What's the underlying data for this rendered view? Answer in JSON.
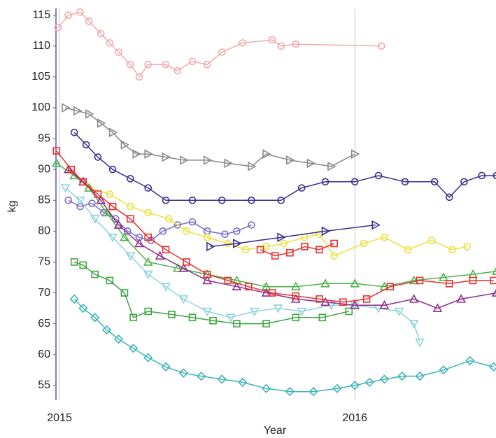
{
  "chart_data": {
    "type": "line",
    "x_label": "Year",
    "y_label": "kg",
    "xlim": [
      2014.988,
      2016.478
    ],
    "xticks": [
      2015,
      2016
    ],
    "ylim": [
      52.6,
      116.1
    ],
    "yticks": [
      55,
      60,
      65,
      70,
      75,
      80,
      85,
      90,
      95,
      100,
      105,
      110,
      115
    ],
    "x_grid": true,
    "series": [
      {
        "color": "#f2a9ad",
        "marker": "circle",
        "x": [
          2014.995,
          2015.03,
          2015.07,
          2015.1,
          2015.14,
          2015.17,
          2015.2,
          2015.24,
          2015.27,
          2015.3,
          2015.36,
          2015.4,
          2015.45,
          2015.5,
          2015.55,
          2015.62,
          2015.72,
          2015.75,
          2015.8,
          2016.09
        ],
        "values": [
          113,
          115,
          115.5,
          114,
          112,
          110.5,
          109,
          107,
          105,
          107,
          107,
          106,
          107.5,
          107,
          109,
          110.5,
          111,
          110,
          110.3,
          110
        ]
      },
      {
        "color": "#8a8a8a",
        "marker": "triangle-right",
        "x": [
          2015.02,
          2015.06,
          2015.1,
          2015.14,
          2015.18,
          2015.22,
          2015.26,
          2015.3,
          2015.36,
          2015.42,
          2015.5,
          2015.57,
          2015.65,
          2015.7,
          2015.78,
          2015.85,
          2015.92,
          2016.0
        ],
        "values": [
          100,
          99.5,
          99,
          97.5,
          96,
          94,
          92.5,
          92.5,
          92,
          91.5,
          91.5,
          91,
          90.5,
          92.5,
          91.5,
          91,
          90.5,
          92.5
        ]
      },
      {
        "color": "#3b2e8f",
        "marker": "circle",
        "x": [
          2015.05,
          2015.09,
          2015.13,
          2015.18,
          2015.24,
          2015.3,
          2015.36,
          2015.45,
          2015.55,
          2015.65,
          2015.75,
          2015.82,
          2015.9,
          2016.0,
          2016.08,
          2016.17,
          2016.27,
          2016.32,
          2016.37,
          2016.43,
          2016.48
        ],
        "values": [
          96,
          94,
          92,
          90,
          88.5,
          87,
          85,
          85,
          85,
          85,
          85,
          87,
          88,
          88,
          89,
          88,
          88,
          85.5,
          88,
          89,
          89
        ]
      },
      {
        "color": "#7b6cc9",
        "marker": "circle",
        "x": [
          2015.03,
          2015.07,
          2015.11,
          2015.15,
          2015.19,
          2015.23,
          2015.27,
          2015.31,
          2015.35,
          2015.4,
          2015.45,
          2015.5,
          2015.56,
          2015.6,
          2015.65
        ],
        "values": [
          85,
          84,
          84.5,
          83,
          82,
          80,
          79,
          78.5,
          80,
          81,
          81.5,
          80,
          79.5,
          80,
          81
        ]
      },
      {
        "color": "#e9e13c",
        "marker": "circle",
        "x": [
          2015.1,
          2015.17,
          2015.24,
          2015.3,
          2015.37,
          2015.43,
          2015.5,
          2015.57,
          2015.63,
          2015.7,
          2015.76,
          2015.83,
          2015.88,
          2015.93,
          2016.03,
          2016.1,
          2016.18,
          2016.26,
          2016.33,
          2016.38
        ],
        "values": [
          87,
          86,
          84,
          83,
          82,
          80,
          79,
          78,
          77,
          77.5,
          78,
          79,
          79.5,
          76,
          78,
          79,
          77,
          78.5,
          77,
          77.5
        ]
      },
      {
        "color": "#4db34a",
        "marker": "triangle-up",
        "x": [
          2014.99,
          2015.05,
          2015.1,
          2015.16,
          2015.22,
          2015.3,
          2015.4,
          2015.5,
          2015.6,
          2015.7,
          2015.8,
          2015.9,
          2016.0,
          2016.1,
          2016.2,
          2016.3,
          2016.4,
          2016.48
        ],
        "values": [
          91,
          89,
          87,
          83,
          79,
          75,
          74,
          73,
          72,
          71,
          71,
          71.5,
          71.5,
          71,
          72,
          72.5,
          73,
          73.5
        ]
      },
      {
        "color": "#3fa540",
        "marker": "square",
        "x": [
          2015.05,
          2015.08,
          2015.12,
          2015.17,
          2015.22,
          2015.25,
          2015.3,
          2015.38,
          2015.45,
          2015.52,
          2015.6,
          2015.7,
          2015.8,
          2015.89,
          2015.98
        ],
        "values": [
          75,
          74.5,
          73,
          72,
          70,
          66,
          67,
          66.5,
          66,
          65.5,
          65,
          65,
          66,
          66,
          67
        ]
      },
      {
        "color": "#8fd3dc",
        "marker": "triangle-down",
        "x": [
          2015.02,
          2015.07,
          2015.12,
          2015.18,
          2015.24,
          2015.3,
          2015.36,
          2015.42,
          2015.5,
          2015.58,
          2015.66,
          2015.74,
          2015.82,
          2015.92,
          2016.0,
          2016.08,
          2016.15,
          2016.2,
          2016.22
        ],
        "values": [
          87,
          85,
          82,
          79,
          76,
          73,
          71,
          69,
          67,
          66,
          67,
          67.5,
          67,
          68,
          68,
          67.5,
          67,
          65,
          62
        ]
      },
      {
        "color": "#8e2c8c",
        "marker": "triangle-up",
        "x": [
          2015.03,
          2015.08,
          2015.14,
          2015.2,
          2015.27,
          2015.34,
          2015.42,
          2015.5,
          2015.6,
          2015.7,
          2015.8,
          2015.9,
          2016.0,
          2016.1,
          2016.2,
          2016.28,
          2016.36,
          2016.48
        ],
        "values": [
          90,
          88,
          85,
          81,
          78,
          76,
          74,
          72,
          71,
          70,
          69,
          68.5,
          68,
          68,
          69,
          67.5,
          69,
          70
        ]
      },
      {
        "color": "#e8302e",
        "marker": "square",
        "x": [
          2014.99,
          2015.04,
          2015.08,
          2015.13,
          2015.18,
          2015.24,
          2015.3,
          2015.36,
          2015.43,
          2015.5,
          2015.57,
          2015.64,
          2015.72,
          2015.8,
          2015.88,
          2015.96,
          2016.04,
          2016.12,
          2016.22,
          2016.32,
          2016.4,
          2016.47
        ],
        "values": [
          93,
          90,
          88,
          86,
          84,
          82,
          79,
          77,
          75,
          73,
          72,
          71,
          70,
          69.5,
          69,
          68.5,
          69,
          71,
          72,
          71.5,
          72,
          72
        ]
      },
      {
        "color": "#e8302e",
        "marker": "square",
        "x": [
          2015.68,
          2015.73,
          2015.78,
          2015.83,
          2015.88,
          2015.93
        ],
        "values": [
          77,
          76,
          76.5,
          77.5,
          77,
          78
        ]
      },
      {
        "color": "#3b2e8f",
        "marker": "triangle-right",
        "x": [
          2015.51,
          2015.6,
          2015.75,
          2015.9,
          2016.07
        ],
        "values": [
          77.5,
          78,
          79,
          80,
          81
        ]
      },
      {
        "color": "#3cb4b8",
        "marker": "diamond",
        "x": [
          2015.05,
          2015.08,
          2015.12,
          2015.16,
          2015.2,
          2015.25,
          2015.3,
          2015.36,
          2015.42,
          2015.48,
          2015.55,
          2015.62,
          2015.7,
          2015.78,
          2015.86,
          2015.94,
          2016.0,
          2016.05,
          2016.1,
          2016.16,
          2016.22,
          2016.3,
          2016.39,
          2016.47
        ],
        "values": [
          69,
          67.5,
          66,
          64,
          62.5,
          61,
          59.5,
          58,
          57,
          56.5,
          56,
          55.5,
          54.5,
          54,
          54,
          54.5,
          55,
          55.5,
          56,
          56.5,
          56.5,
          57.5,
          59,
          58
        ]
      }
    ]
  }
}
